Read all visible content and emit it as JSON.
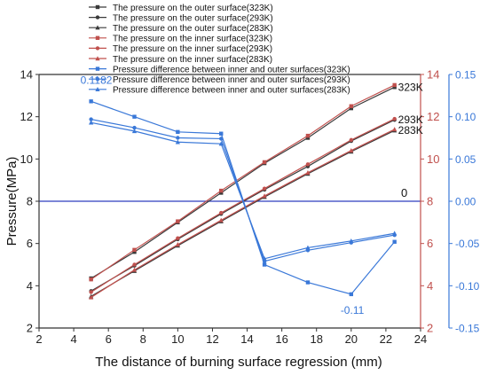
{
  "chart_data": {
    "type": "line",
    "xlabel": "The distance of burning surface regression (mm)",
    "ylabel": "Pressure(MPa)",
    "xlim": [
      2,
      24
    ],
    "ylim": [
      2,
      14
    ],
    "y2lim": [
      2,
      14
    ],
    "y3lim": [
      -0.15,
      0.15
    ],
    "x_ticks": [
      2,
      4,
      6,
      8,
      10,
      12,
      14,
      16,
      18,
      20,
      22,
      24
    ],
    "y_ticks": [
      2,
      4,
      6,
      8,
      10,
      12,
      14
    ],
    "y2_ticks": [
      2,
      4,
      6,
      8,
      10,
      12,
      14
    ],
    "y3_ticks": [
      -0.15,
      -0.1,
      -0.05,
      0.0,
      0.05,
      0.1,
      0.15
    ],
    "y3_tick_labels": [
      "-0.15",
      "-0.10",
      "-0.05",
      "0.00",
      "0.05",
      "0.10",
      "0.15"
    ],
    "x": [
      5,
      7.5,
      10,
      12.5,
      15,
      17.5,
      20,
      22.5
    ],
    "legend_position": "top-center",
    "series": [
      {
        "name": "The  pressure on the outer surface(323K)",
        "axis": "left",
        "color": "#3a3a3a",
        "marker": "square",
        "values": [
          4.35,
          5.6,
          7.0,
          8.4,
          9.8,
          11.0,
          12.4,
          13.4
        ]
      },
      {
        "name": "The  pressure on the outer surface(293K)",
        "axis": "left",
        "color": "#3a3a3a",
        "marker": "circle",
        "values": [
          3.75,
          4.95,
          6.2,
          7.4,
          8.55,
          9.65,
          10.85,
          11.85
        ]
      },
      {
        "name": "The  pressure on the outer surface(283K)",
        "axis": "left",
        "color": "#3a3a3a",
        "marker": "triangle",
        "values": [
          3.5,
          4.7,
          5.9,
          7.05,
          8.2,
          9.3,
          10.35,
          11.35
        ]
      },
      {
        "name": "The  pressure on the inner surface(323K)",
        "axis": "left",
        "color": "#c0504d",
        "marker": "square",
        "values": [
          4.3,
          5.7,
          7.05,
          8.5,
          9.85,
          11.1,
          12.5,
          13.5
        ]
      },
      {
        "name": "The  pressure on the inner surface(293K)",
        "axis": "left",
        "color": "#c0504d",
        "marker": "circle",
        "values": [
          3.7,
          5.0,
          6.25,
          7.45,
          8.6,
          9.75,
          10.9,
          11.9
        ]
      },
      {
        "name": "The  pressure on the inner surface(283K)",
        "axis": "left",
        "color": "#c0504d",
        "marker": "triangle",
        "values": [
          3.45,
          4.75,
          5.95,
          7.1,
          8.25,
          9.35,
          10.4,
          11.4
        ]
      },
      {
        "name": "Pressure difference between inner and outer surfaces(323K)",
        "axis": "right2",
        "color": "#3a78d8",
        "marker": "square",
        "values": [
          0.1182,
          0.1,
          0.082,
          0.08,
          -0.075,
          -0.096,
          -0.11,
          -0.048
        ]
      },
      {
        "name": "Pressure difference between inner and outer surfaces(293K)",
        "axis": "right2",
        "color": "#3a78d8",
        "marker": "circle",
        "values": [
          0.097,
          0.087,
          0.075,
          0.074,
          -0.071,
          -0.058,
          -0.049,
          -0.04
        ]
      },
      {
        "name": "Pressure difference between inner and outer surfaces(283K)",
        "axis": "right2",
        "color": "#3a78d8",
        "marker": "triangle",
        "values": [
          0.093,
          0.083,
          0.07,
          0.068,
          -0.068,
          -0.055,
          -0.047,
          -0.038
        ]
      }
    ],
    "zero_line": {
      "value": 8,
      "axis": "left",
      "label": "0",
      "color": "#2e3dbf"
    },
    "annotations": [
      {
        "text": "323K",
        "x": 22.5,
        "y": 13.4,
        "axis": "left"
      },
      {
        "text": "293K",
        "x": 22.5,
        "y": 11.85,
        "axis": "left"
      },
      {
        "text": "283K",
        "x": 22.5,
        "y": 11.35,
        "axis": "left"
      },
      {
        "text": "0.1182",
        "x": 5,
        "y": 0.1182,
        "axis": "right2",
        "color": "#3a78d8"
      },
      {
        "text": "-0.11",
        "x": 20,
        "y": -0.11,
        "axis": "right2",
        "color": "#3a78d8"
      }
    ]
  }
}
